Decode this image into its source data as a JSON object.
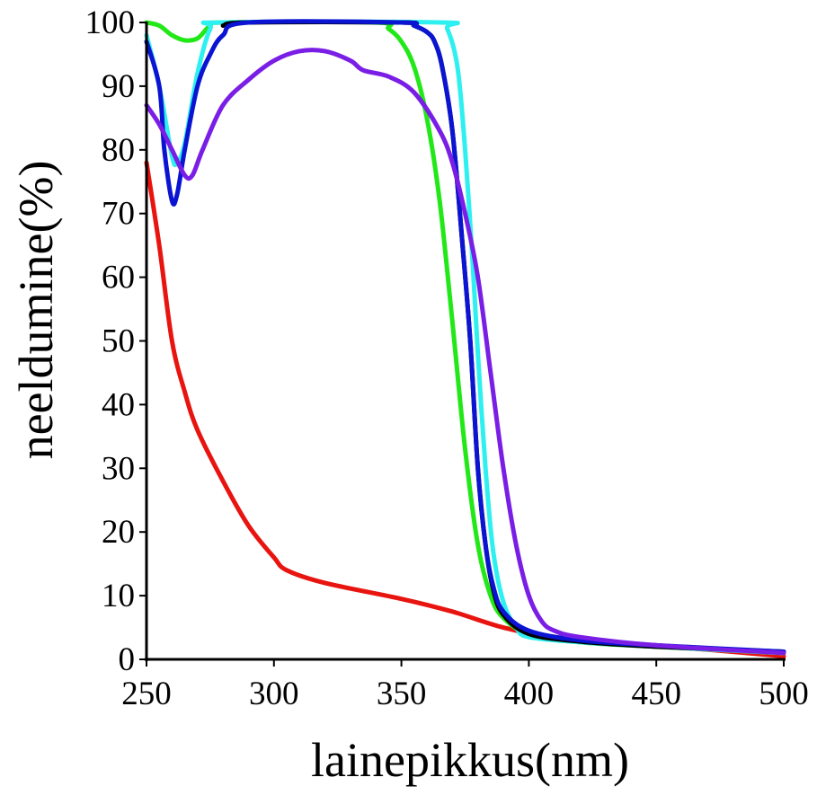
{
  "chart_data": {
    "type": "line",
    "title": "",
    "xlabel": "lainepikkus(nm)",
    "ylabel": "neeldumine(%)",
    "xlim": [
      250,
      500
    ],
    "ylim": [
      0,
      100
    ],
    "xticks": [
      250,
      300,
      350,
      400,
      450,
      500
    ],
    "yticks": [
      0,
      10,
      20,
      30,
      40,
      50,
      60,
      70,
      80,
      90,
      100
    ],
    "grid": false,
    "series": [
      {
        "color": "#e8140f",
        "points": [
          [
            250,
            78
          ],
          [
            255,
            65
          ],
          [
            260,
            50
          ],
          [
            265,
            42
          ],
          [
            270,
            36
          ],
          [
            280,
            28
          ],
          [
            290,
            21
          ],
          [
            300,
            16
          ],
          [
            305,
            14
          ],
          [
            320,
            12
          ],
          [
            350,
            9.5
          ],
          [
            370,
            7.5
          ],
          [
            390,
            5
          ],
          [
            410,
            3.5
          ],
          [
            450,
            2.2
          ],
          [
            500,
            0.5
          ]
        ]
      },
      {
        "color": "#22e818",
        "points": [
          [
            250,
            100
          ],
          [
            255,
            99.5
          ],
          [
            260,
            98
          ],
          [
            265,
            97.2
          ],
          [
            270,
            97.5
          ],
          [
            275,
            99.5
          ],
          [
            280,
            100
          ],
          [
            340,
            100
          ],
          [
            345,
            99
          ],
          [
            350,
            97
          ],
          [
            355,
            93
          ],
          [
            360,
            85
          ],
          [
            365,
            72
          ],
          [
            370,
            53
          ],
          [
            375,
            33
          ],
          [
            380,
            18
          ],
          [
            385,
            10
          ],
          [
            390,
            6.5
          ],
          [
            400,
            4
          ],
          [
            420,
            2.7
          ],
          [
            450,
            2
          ],
          [
            500,
            1
          ]
        ]
      },
      {
        "color": "#2ef0f0",
        "points": [
          [
            250,
            98
          ],
          [
            255,
            90
          ],
          [
            260,
            79
          ],
          [
            262,
            78
          ],
          [
            265,
            81
          ],
          [
            270,
            92
          ],
          [
            275,
            99
          ],
          [
            280,
            100
          ],
          [
            365,
            100
          ],
          [
            368,
            99
          ],
          [
            372,
            93
          ],
          [
            375,
            80
          ],
          [
            378,
            62
          ],
          [
            380,
            48
          ],
          [
            383,
            30
          ],
          [
            386,
            17
          ],
          [
            390,
            9
          ],
          [
            395,
            5
          ],
          [
            400,
            3.5
          ],
          [
            420,
            2.7
          ],
          [
            450,
            2
          ],
          [
            500,
            1
          ]
        ]
      },
      {
        "color": "#000000",
        "points": [
          [
            280,
            99.5
          ],
          [
            290,
            100
          ],
          [
            350,
            100
          ],
          [
            355,
            99.5
          ],
          [
            360,
            98.5
          ],
          [
            363,
            97
          ],
          [
            366,
            93
          ],
          [
            370,
            83
          ],
          [
            374,
            65
          ],
          [
            377,
            50
          ],
          [
            380,
            30
          ],
          [
            383,
            18
          ],
          [
            386,
            11
          ],
          [
            390,
            7
          ],
          [
            400,
            4
          ],
          [
            420,
            2.8
          ],
          [
            450,
            2
          ],
          [
            500,
            1.2
          ]
        ]
      },
      {
        "color": "#0a14d2",
        "points": [
          [
            250,
            97
          ],
          [
            255,
            90
          ],
          [
            257,
            80
          ],
          [
            260,
            72
          ],
          [
            262,
            73
          ],
          [
            265,
            80
          ],
          [
            270,
            90
          ],
          [
            275,
            95
          ],
          [
            280,
            98
          ],
          [
            290,
            100
          ],
          [
            350,
            100
          ],
          [
            355,
            99.5
          ],
          [
            360,
            98.5
          ],
          [
            363,
            97
          ],
          [
            366,
            93
          ],
          [
            370,
            83
          ],
          [
            374,
            65
          ],
          [
            377,
            50
          ],
          [
            380,
            30
          ],
          [
            383,
            18
          ],
          [
            386,
            11.5
          ],
          [
            390,
            7.5
          ],
          [
            400,
            4.5
          ],
          [
            420,
            3
          ],
          [
            450,
            2.2
          ],
          [
            500,
            1.2
          ]
        ]
      },
      {
        "color": "#7a1ee6",
        "points": [
          [
            250,
            87
          ],
          [
            255,
            84
          ],
          [
            260,
            80
          ],
          [
            265,
            76
          ],
          [
            268,
            76
          ],
          [
            272,
            80
          ],
          [
            280,
            87
          ],
          [
            290,
            91
          ],
          [
            300,
            94
          ],
          [
            310,
            95.5
          ],
          [
            320,
            95.5
          ],
          [
            330,
            94
          ],
          [
            335,
            92.5
          ],
          [
            345,
            91.5
          ],
          [
            355,
            89
          ],
          [
            365,
            83
          ],
          [
            370,
            78
          ],
          [
            375,
            70
          ],
          [
            380,
            60
          ],
          [
            385,
            45
          ],
          [
            390,
            30
          ],
          [
            395,
            18
          ],
          [
            400,
            10
          ],
          [
            405,
            6
          ],
          [
            410,
            4.5
          ],
          [
            420,
            3.5
          ],
          [
            450,
            2.2
          ],
          [
            500,
            1
          ]
        ]
      }
    ]
  }
}
